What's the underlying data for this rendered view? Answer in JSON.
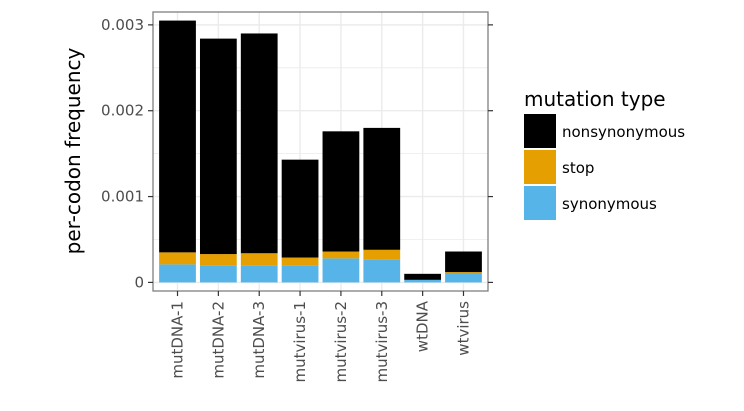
{
  "chart_data": {
    "type": "bar",
    "stacked": true,
    "title": "",
    "xlabel": "",
    "ylabel": "per-codon frequency",
    "ylim": [
      -0.0001,
      0.00315
    ],
    "yticks": [
      0,
      0.001,
      0.002,
      0.003
    ],
    "ytick_labels": [
      "0",
      "0.001",
      "0.002",
      "0.003"
    ],
    "grid": true,
    "legend_position": "right",
    "legend_title": "mutation type",
    "categories": [
      "mutDNA-1",
      "mutDNA-2",
      "mutDNA-3",
      "mutvirus-1",
      "mutvirus-2",
      "mutvirus-3",
      "wtDNA",
      "wtvirus"
    ],
    "series": [
      {
        "name": "synonymous",
        "color": "#56B4E9",
        "values": [
          0.00021,
          0.0002,
          0.0002,
          0.0002,
          0.00028,
          0.00027,
          3e-05,
          0.00011
        ]
      },
      {
        "name": "stop",
        "color": "#E69F00",
        "values": [
          0.00014,
          0.00013,
          0.00014,
          9e-05,
          8e-05,
          0.00011,
          0.0,
          1e-05
        ]
      },
      {
        "name": "nonsynonymous",
        "color": "#000000",
        "values": [
          0.0027,
          0.00251,
          0.00256,
          0.00114,
          0.0014,
          0.00142,
          7e-05,
          0.00024
        ]
      }
    ],
    "legend_order": [
      "nonsynonymous",
      "stop",
      "synonymous"
    ]
  }
}
